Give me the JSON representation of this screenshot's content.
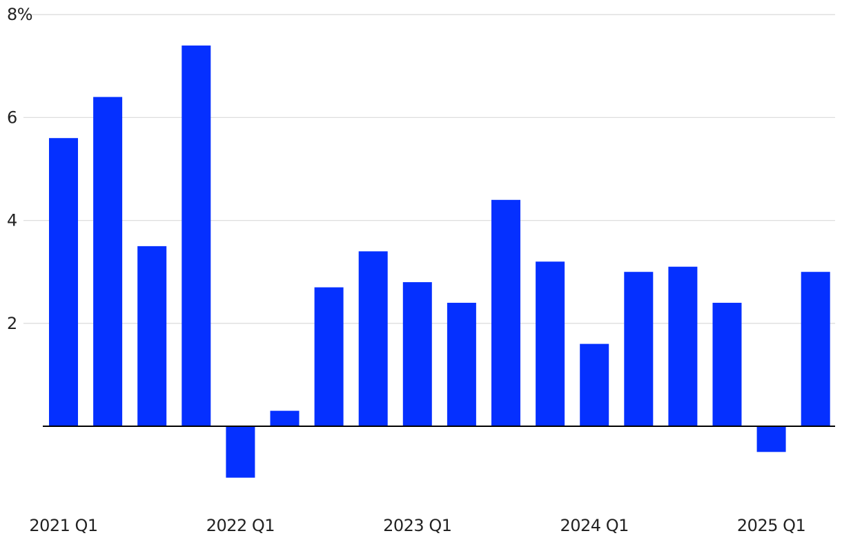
{
  "chart_data": {
    "type": "bar",
    "categories": [
      "2021 Q1",
      "2021 Q2",
      "2021 Q3",
      "2021 Q4",
      "2022 Q1",
      "2022 Q2",
      "2022 Q3",
      "2022 Q4",
      "2023 Q1",
      "2023 Q2",
      "2023 Q3",
      "2023 Q4",
      "2024 Q1",
      "2024 Q2",
      "2024 Q3",
      "2024 Q4",
      "2025 Q1",
      "2025 Q2"
    ],
    "values": [
      5.6,
      6.4,
      3.5,
      7.4,
      -1.0,
      0.3,
      2.7,
      3.4,
      2.8,
      2.4,
      4.4,
      3.2,
      1.6,
      3.0,
      3.1,
      2.4,
      -0.5,
      3.0
    ],
    "x_tick_labels": [
      "2021 Q1",
      "2022 Q1",
      "2023 Q1",
      "2024 Q1",
      "2025 Q1"
    ],
    "x_tick_category_indices": [
      0,
      4,
      8,
      12,
      16
    ],
    "y_ticks": [
      {
        "value": 2,
        "label": "2"
      },
      {
        "value": 4,
        "label": "4"
      },
      {
        "value": 6,
        "label": "6"
      },
      {
        "value": 8,
        "label": "8%"
      }
    ],
    "ylim": [
      -1.6,
      8.0
    ],
    "grid": true,
    "bar_color": "#0530ff",
    "title": "",
    "xlabel": "",
    "ylabel": ""
  }
}
